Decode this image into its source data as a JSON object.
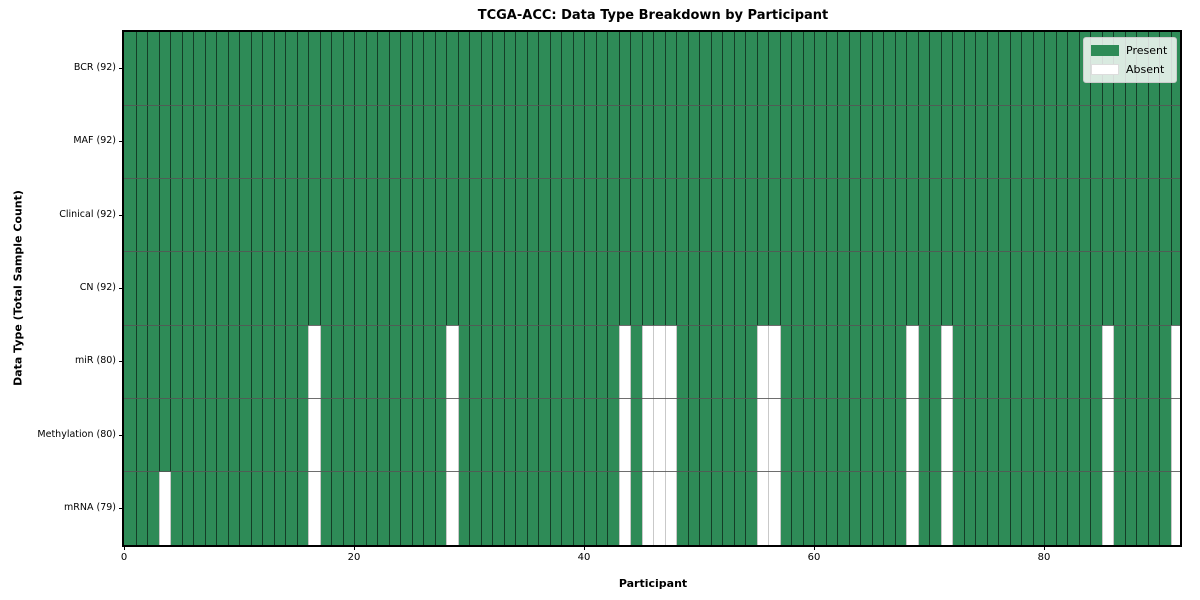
{
  "chart_data": {
    "type": "heatmap",
    "title": "TCGA-ACC: Data Type Breakdown by Participant",
    "xlabel": "Participant",
    "ylabel": "Data Type (Total Sample Count)",
    "x_ticks": [
      0,
      20,
      40,
      60,
      80
    ],
    "x_range": [
      0,
      92
    ],
    "n_participants": 92,
    "grid": true,
    "legend_position": "upper right",
    "rows": [
      {
        "key": "bcr",
        "label": "BCR (92)",
        "present_count": 92,
        "absent": []
      },
      {
        "key": "maf",
        "label": "MAF (92)",
        "present_count": 92,
        "absent": []
      },
      {
        "key": "clinical",
        "label": "Clinical (92)",
        "present_count": 92,
        "absent": []
      },
      {
        "key": "cn",
        "label": "CN (92)",
        "present_count": 92,
        "absent": []
      },
      {
        "key": "mir",
        "label": "miR (80)",
        "present_count": 80,
        "absent": [
          16,
          28,
          43,
          45,
          46,
          47,
          55,
          56,
          68,
          71,
          85,
          91
        ]
      },
      {
        "key": "methylation",
        "label": "Methylation (80)",
        "present_count": 80,
        "absent": [
          16,
          28,
          43,
          45,
          46,
          47,
          55,
          56,
          68,
          71,
          85,
          91
        ]
      },
      {
        "key": "mrna",
        "label": "mRNA (79)",
        "present_count": 79,
        "absent": [
          3,
          16,
          28,
          43,
          45,
          46,
          47,
          55,
          56,
          68,
          71,
          85,
          91
        ]
      }
    ],
    "legend": [
      {
        "key": "present",
        "label": "Present",
        "color": "#2e8b57"
      },
      {
        "key": "absent",
        "label": "Absent",
        "color": "#ffffff"
      }
    ],
    "colors": {
      "present": "#2e8b57",
      "absent": "#ffffff",
      "present_edge": "rgba(0,0,0,0.55)",
      "absent_edge": "#c9c9c9",
      "row_separator": "rgba(85,85,85,0.85)",
      "spine": "#000000"
    }
  }
}
